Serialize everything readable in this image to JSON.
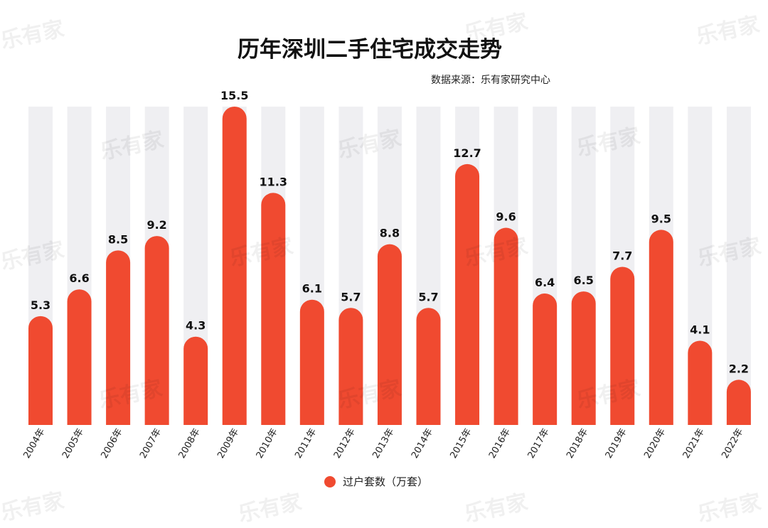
{
  "title": "历年深圳二手住宅成交走势",
  "source": "数据来源：乐有家研究中心",
  "watermark": "乐有家",
  "colors": {
    "bar": "#F04A30",
    "track": "#EFEFF2",
    "text": "#111111"
  },
  "chart_data": {
    "type": "bar",
    "categories": [
      "2004年",
      "2005年",
      "2006年",
      "2007年",
      "2008年",
      "2009年",
      "2010年",
      "2011年",
      "2012年",
      "2013年",
      "2014年",
      "2015年",
      "2016年",
      "2017年",
      "2018年",
      "2019年",
      "2020年",
      "2021年",
      "2022年"
    ],
    "series": [
      {
        "name": "过户套数（万套）",
        "values": [
          5.3,
          6.6,
          8.5,
          9.2,
          4.3,
          15.5,
          11.3,
          6.1,
          5.7,
          8.8,
          5.7,
          12.7,
          9.6,
          6.4,
          6.5,
          7.7,
          9.5,
          4.1,
          2.2
        ]
      }
    ],
    "ylim": [
      0,
      15.5
    ],
    "grid": false,
    "legend": "bottom"
  }
}
